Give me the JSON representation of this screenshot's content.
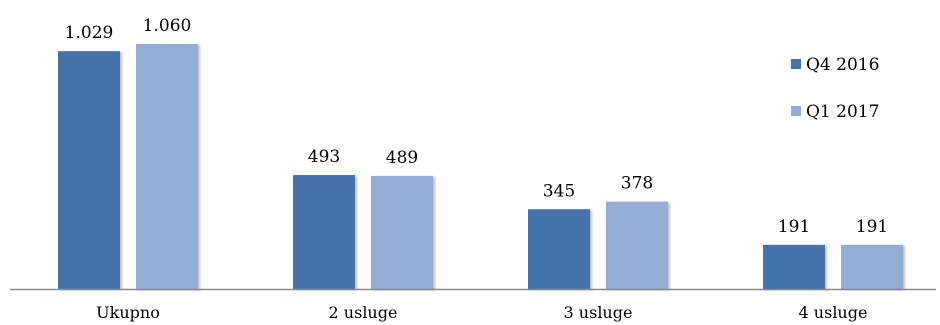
{
  "colors": {
    "series": [
      "#4472a8",
      "#95add4"
    ],
    "axis": "#888888"
  },
  "chart_data": {
    "type": "bar",
    "categories": [
      "Ukupno",
      "2 usluge",
      "3 usluge",
      "4 usluge"
    ],
    "series": [
      {
        "name": "Q4 2016",
        "values": [
          1029,
          493,
          345,
          191
        ],
        "labels": [
          "1.029",
          "493",
          "345",
          "191"
        ]
      },
      {
        "name": "Q1 2017",
        "values": [
          1060,
          489,
          378,
          191
        ],
        "labels": [
          "1.060",
          "489",
          "378",
          "191"
        ]
      }
    ],
    "title": "",
    "xlabel": "",
    "ylabel": "",
    "ylim": [
      0,
      1060
    ],
    "grid": false,
    "legend_position": "right"
  }
}
